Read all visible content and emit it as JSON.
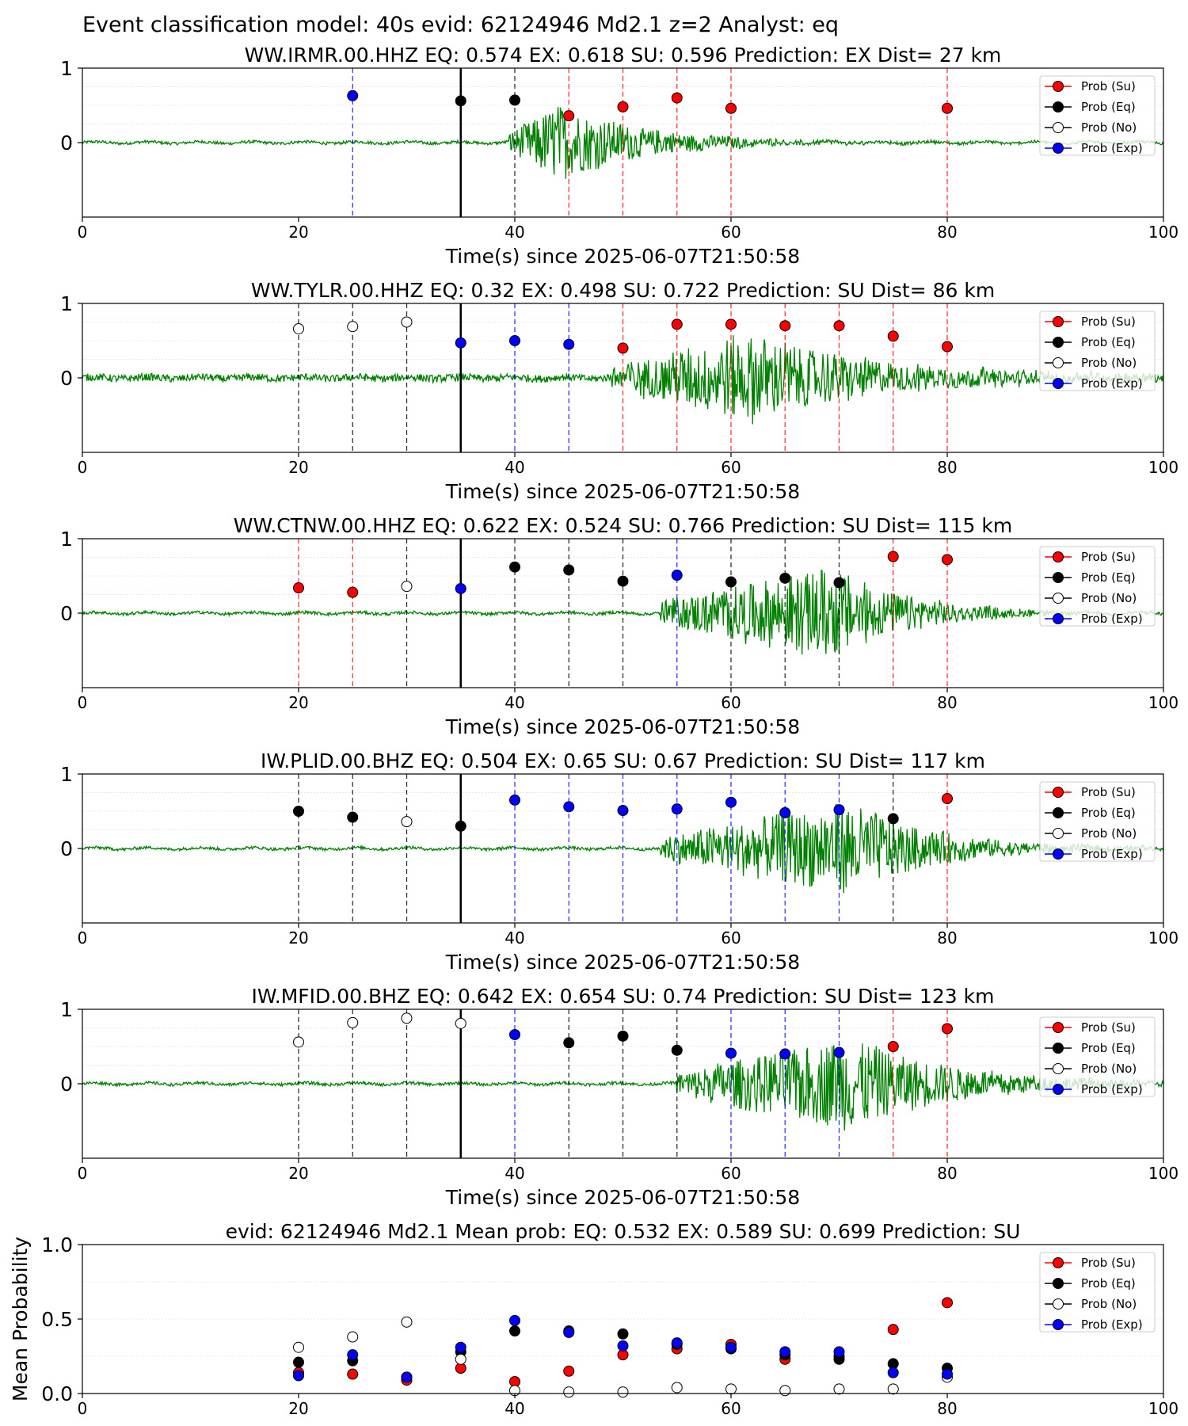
{
  "figure": {
    "title": "Event classification model: 40s evid: 62124946 Md2.1 z=2 Analyst: eq",
    "legend": [
      {
        "label": "Prob (Su)",
        "color": "#ff0000",
        "fill": "#ff0000"
      },
      {
        "label": "Prob (Eq)",
        "color": "#000000",
        "fill": "#000000"
      },
      {
        "label": "Prob (No)",
        "color": "#000000",
        "fill": "#ffffff"
      },
      {
        "label": "Prob (Exp)",
        "color": "#0000ff",
        "fill": "#0000ff"
      }
    ],
    "colors": {
      "waveform": "#008000",
      "su": "#ff0000",
      "eq": "#000000",
      "exp": "#0000ff",
      "no": "#ffffff"
    }
  },
  "chart_data": [
    {
      "type": "scatter",
      "title": "WW.IRMR.00.HHZ   EQ: 0.574  EX: 0.618  SU: 0.596   Prediction: EX    Dist= 27 km",
      "xlabel": "Time(s) since 2025-06-07T21:50:58",
      "ylabel": "",
      "xlim": [
        0,
        100
      ],
      "ylim": [
        -1,
        1
      ],
      "xticks": [
        "0",
        "20",
        "40",
        "60",
        "80",
        "100"
      ],
      "yticks": [
        "1",
        "0"
      ],
      "reference_line_x": 35,
      "waveform": {
        "onset": 39.5,
        "peak": 44,
        "amp": 0.75,
        "decay": 8,
        "noise": 0.02
      },
      "points": [
        {
          "x": 25,
          "y": 0.63,
          "class": "exp"
        },
        {
          "x": 35,
          "y": 0.56,
          "class": "eq"
        },
        {
          "x": 40,
          "y": 0.57,
          "class": "eq"
        },
        {
          "x": 45,
          "y": 0.36,
          "class": "su"
        },
        {
          "x": 50,
          "y": 0.48,
          "class": "su"
        },
        {
          "x": 55,
          "y": 0.6,
          "class": "su"
        },
        {
          "x": 60,
          "y": 0.46,
          "class": "su"
        },
        {
          "x": 80,
          "y": 0.46,
          "class": "su"
        }
      ]
    },
    {
      "type": "scatter",
      "title": "WW.TYLR.00.HHZ   EQ: 0.32  EX: 0.498  SU: 0.722   Prediction: SU    Dist= 86 km",
      "xlabel": "Time(s) since 2025-06-07T21:50:58",
      "ylabel": "",
      "xlim": [
        0,
        100
      ],
      "ylim": [
        -1,
        1
      ],
      "xticks": [
        "0",
        "20",
        "40",
        "60",
        "80",
        "100"
      ],
      "yticks": [
        "1",
        "0"
      ],
      "reference_line_x": 35,
      "waveform": {
        "onset": 49,
        "peak": 62,
        "amp": 0.85,
        "decay": 12,
        "noise": 0.05
      },
      "points": [
        {
          "x": 20,
          "y": 0.66,
          "class": "no"
        },
        {
          "x": 25,
          "y": 0.69,
          "class": "no"
        },
        {
          "x": 30,
          "y": 0.75,
          "class": "no"
        },
        {
          "x": 35,
          "y": 0.47,
          "class": "exp"
        },
        {
          "x": 40,
          "y": 0.5,
          "class": "exp"
        },
        {
          "x": 45,
          "y": 0.45,
          "class": "exp"
        },
        {
          "x": 50,
          "y": 0.4,
          "class": "su"
        },
        {
          "x": 55,
          "y": 0.72,
          "class": "su"
        },
        {
          "x": 60,
          "y": 0.72,
          "class": "su"
        },
        {
          "x": 65,
          "y": 0.7,
          "class": "su"
        },
        {
          "x": 70,
          "y": 0.7,
          "class": "su"
        },
        {
          "x": 75,
          "y": 0.56,
          "class": "su"
        },
        {
          "x": 80,
          "y": 0.42,
          "class": "su"
        }
      ]
    },
    {
      "type": "scatter",
      "title": "WW.CTNW.00.HHZ   EQ: 0.622  EX: 0.524  SU: 0.766   Prediction: SU    Dist= 115 km",
      "xlabel": "Time(s) since 2025-06-07T21:50:58",
      "ylabel": "",
      "xlim": [
        0,
        100
      ],
      "ylim": [
        -1,
        1
      ],
      "xticks": [
        "0",
        "20",
        "40",
        "60",
        "80",
        "100"
      ],
      "yticks": [
        "1",
        "0"
      ],
      "reference_line_x": 35,
      "waveform": {
        "onset": 53.5,
        "peak": 69.5,
        "amp": 0.9,
        "decay": 7,
        "noise": 0.02
      },
      "points": [
        {
          "x": 20,
          "y": 0.34,
          "class": "su"
        },
        {
          "x": 25,
          "y": 0.28,
          "class": "su"
        },
        {
          "x": 30,
          "y": 0.36,
          "class": "no"
        },
        {
          "x": 35,
          "y": 0.33,
          "class": "exp"
        },
        {
          "x": 40,
          "y": 0.62,
          "class": "eq"
        },
        {
          "x": 45,
          "y": 0.58,
          "class": "eq"
        },
        {
          "x": 50,
          "y": 0.43,
          "class": "eq"
        },
        {
          "x": 55,
          "y": 0.51,
          "class": "exp"
        },
        {
          "x": 60,
          "y": 0.42,
          "class": "eq"
        },
        {
          "x": 65,
          "y": 0.47,
          "class": "eq"
        },
        {
          "x": 70,
          "y": 0.41,
          "class": "eq"
        },
        {
          "x": 75,
          "y": 0.76,
          "class": "su"
        },
        {
          "x": 80,
          "y": 0.72,
          "class": "su"
        }
      ]
    },
    {
      "type": "scatter",
      "title": "IW.PLID.00.BHZ   EQ: 0.504  EX: 0.65  SU: 0.67   Prediction: SU    Dist= 117 km",
      "xlabel": "Time(s) since 2025-06-07T21:50:58",
      "ylabel": "",
      "xlim": [
        0,
        100
      ],
      "ylim": [
        -1,
        1
      ],
      "xticks": [
        "0",
        "20",
        "40",
        "60",
        "80",
        "100"
      ],
      "yticks": [
        "1",
        "0"
      ],
      "reference_line_x": 35,
      "waveform": {
        "onset": 53.5,
        "peak": 71,
        "amp": 0.9,
        "decay": 8,
        "noise": 0.02
      },
      "points": [
        {
          "x": 20,
          "y": 0.5,
          "class": "eq"
        },
        {
          "x": 25,
          "y": 0.42,
          "class": "eq"
        },
        {
          "x": 30,
          "y": 0.36,
          "class": "no"
        },
        {
          "x": 35,
          "y": 0.3,
          "class": "eq"
        },
        {
          "x": 40,
          "y": 0.65,
          "class": "exp"
        },
        {
          "x": 45,
          "y": 0.56,
          "class": "exp"
        },
        {
          "x": 50,
          "y": 0.51,
          "class": "exp"
        },
        {
          "x": 55,
          "y": 0.53,
          "class": "exp"
        },
        {
          "x": 60,
          "y": 0.62,
          "class": "exp"
        },
        {
          "x": 65,
          "y": 0.48,
          "class": "exp"
        },
        {
          "x": 70,
          "y": 0.52,
          "class": "exp"
        },
        {
          "x": 75,
          "y": 0.4,
          "class": "eq"
        },
        {
          "x": 80,
          "y": 0.67,
          "class": "su"
        }
      ]
    },
    {
      "type": "scatter",
      "title": "IW.MFID.00.BHZ   EQ: 0.642  EX: 0.654  SU: 0.74   Prediction: SU    Dist= 123 km",
      "xlabel": "Time(s) since 2025-06-07T21:50:58",
      "ylabel": "",
      "xlim": [
        0,
        100
      ],
      "ylim": [
        -1,
        1
      ],
      "xticks": [
        "0",
        "20",
        "40",
        "60",
        "80",
        "100"
      ],
      "yticks": [
        "1",
        "0"
      ],
      "reference_line_x": 35,
      "waveform": {
        "onset": 55,
        "peak": 71,
        "amp": 0.9,
        "decay": 10,
        "noise": 0.02
      },
      "points": [
        {
          "x": 20,
          "y": 0.56,
          "class": "no"
        },
        {
          "x": 25,
          "y": 0.82,
          "class": "no"
        },
        {
          "x": 30,
          "y": 0.88,
          "class": "no"
        },
        {
          "x": 35,
          "y": 0.81,
          "class": "no"
        },
        {
          "x": 40,
          "y": 0.66,
          "class": "exp"
        },
        {
          "x": 45,
          "y": 0.55,
          "class": "eq"
        },
        {
          "x": 50,
          "y": 0.64,
          "class": "eq"
        },
        {
          "x": 55,
          "y": 0.45,
          "class": "eq"
        },
        {
          "x": 60,
          "y": 0.41,
          "class": "exp"
        },
        {
          "x": 65,
          "y": 0.4,
          "class": "exp"
        },
        {
          "x": 70,
          "y": 0.42,
          "class": "exp"
        },
        {
          "x": 75,
          "y": 0.5,
          "class": "su"
        },
        {
          "x": 80,
          "y": 0.74,
          "class": "su"
        }
      ]
    },
    {
      "type": "scatter",
      "title": "evid: 62124946  Md2.1   Mean prob:   EQ: 0.532  EX: 0.589  SU: 0.699   Prediction: SU",
      "xlabel": "",
      "ylabel": "Mean Probability",
      "xlim": [
        0,
        100
      ],
      "ylim": [
        0,
        1
      ],
      "xticks": [
        "0",
        "20",
        "40",
        "60",
        "80",
        "100"
      ],
      "yticks": [
        "1.0",
        "0.5",
        "0.0"
      ],
      "series": [
        {
          "name": "Prob (Su)",
          "class": "su",
          "x": [
            20,
            25,
            30,
            35,
            40,
            45,
            50,
            55,
            60,
            65,
            70,
            75,
            80
          ],
          "y": [
            0.14,
            0.13,
            0.09,
            0.17,
            0.08,
            0.15,
            0.26,
            0.3,
            0.33,
            0.23,
            0.25,
            0.43,
            0.61
          ]
        },
        {
          "name": "Prob (Eq)",
          "class": "eq",
          "x": [
            20,
            25,
            30,
            35,
            40,
            45,
            50,
            55,
            60,
            65,
            70,
            75,
            80
          ],
          "y": [
            0.21,
            0.22,
            0.11,
            0.28,
            0.42,
            0.42,
            0.4,
            0.33,
            0.3,
            0.26,
            0.23,
            0.2,
            0.17
          ]
        },
        {
          "name": "Prob (No)",
          "class": "no",
          "x": [
            20,
            25,
            30,
            35,
            40,
            45,
            50,
            55,
            60,
            65,
            70,
            75,
            80
          ],
          "y": [
            0.31,
            0.38,
            0.48,
            0.23,
            0.02,
            0.01,
            0.01,
            0.04,
            0.03,
            0.02,
            0.03,
            0.03,
            0.11
          ]
        },
        {
          "name": "Prob (Exp)",
          "class": "exp",
          "x": [
            20,
            25,
            30,
            35,
            40,
            45,
            50,
            55,
            60,
            65,
            70,
            75,
            80
          ],
          "y": [
            0.12,
            0.26,
            0.11,
            0.31,
            0.49,
            0.41,
            0.32,
            0.34,
            0.31,
            0.28,
            0.28,
            0.14,
            0.13
          ]
        }
      ]
    }
  ]
}
